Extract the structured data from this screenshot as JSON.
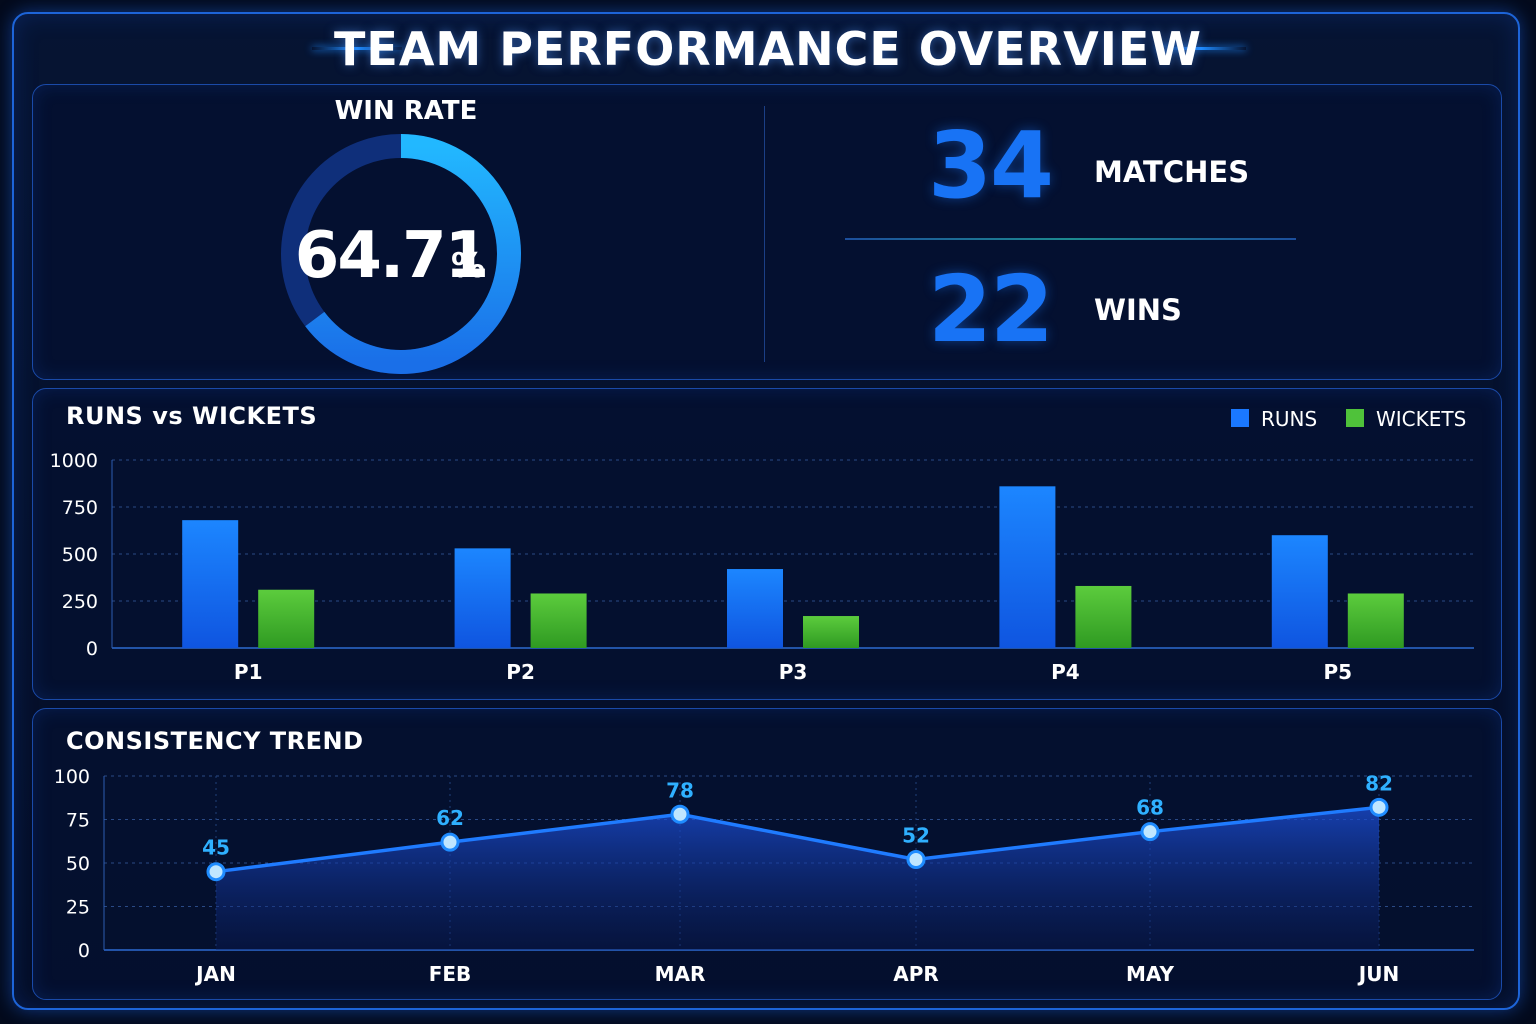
{
  "page": {
    "title": "TEAM PERFORMANCE OVERVIEW"
  },
  "summary": {
    "win_rate_label": "WIN RATE",
    "win_rate_value": "64.71",
    "win_rate_unit": "%",
    "win_rate_fraction": 0.6471,
    "matches_value": "34",
    "matches_label": "MATCHES",
    "wins_value": "22",
    "wins_label": "WINS"
  },
  "colors": {
    "accent_blue": "#1873f5",
    "runs_blue": "#1a78ff",
    "wickets_green": "#4fc23a",
    "trend_line": "#1f7bff",
    "point_label": "#2fb0ff",
    "gauge_track": "#0f2f7a",
    "gauge_fill": "#1aa8ff"
  },
  "chart_data": [
    {
      "type": "bar",
      "title": "RUNS vs WICKETS",
      "categories": [
        "P1",
        "P2",
        "P3",
        "P4",
        "P5"
      ],
      "series": [
        {
          "name": "RUNS",
          "values": [
            680,
            530,
            420,
            860,
            600
          ]
        },
        {
          "name": "WICKETS",
          "values": [
            310,
            290,
            170,
            330,
            290
          ]
        }
      ],
      "ylim": [
        0,
        1000
      ],
      "yticks": [
        0,
        250,
        500,
        750,
        1000
      ],
      "grid": true,
      "legend": "top-right"
    },
    {
      "type": "area",
      "title": "CONSISTENCY TREND",
      "categories": [
        "JAN",
        "FEB",
        "MAR",
        "APR",
        "MAY",
        "JUN"
      ],
      "series": [
        {
          "values": [
            45,
            62,
            78,
            52,
            68,
            82
          ]
        }
      ],
      "ylim": [
        0,
        100
      ],
      "yticks": [
        0,
        25,
        50,
        75,
        100
      ],
      "grid": true
    }
  ]
}
